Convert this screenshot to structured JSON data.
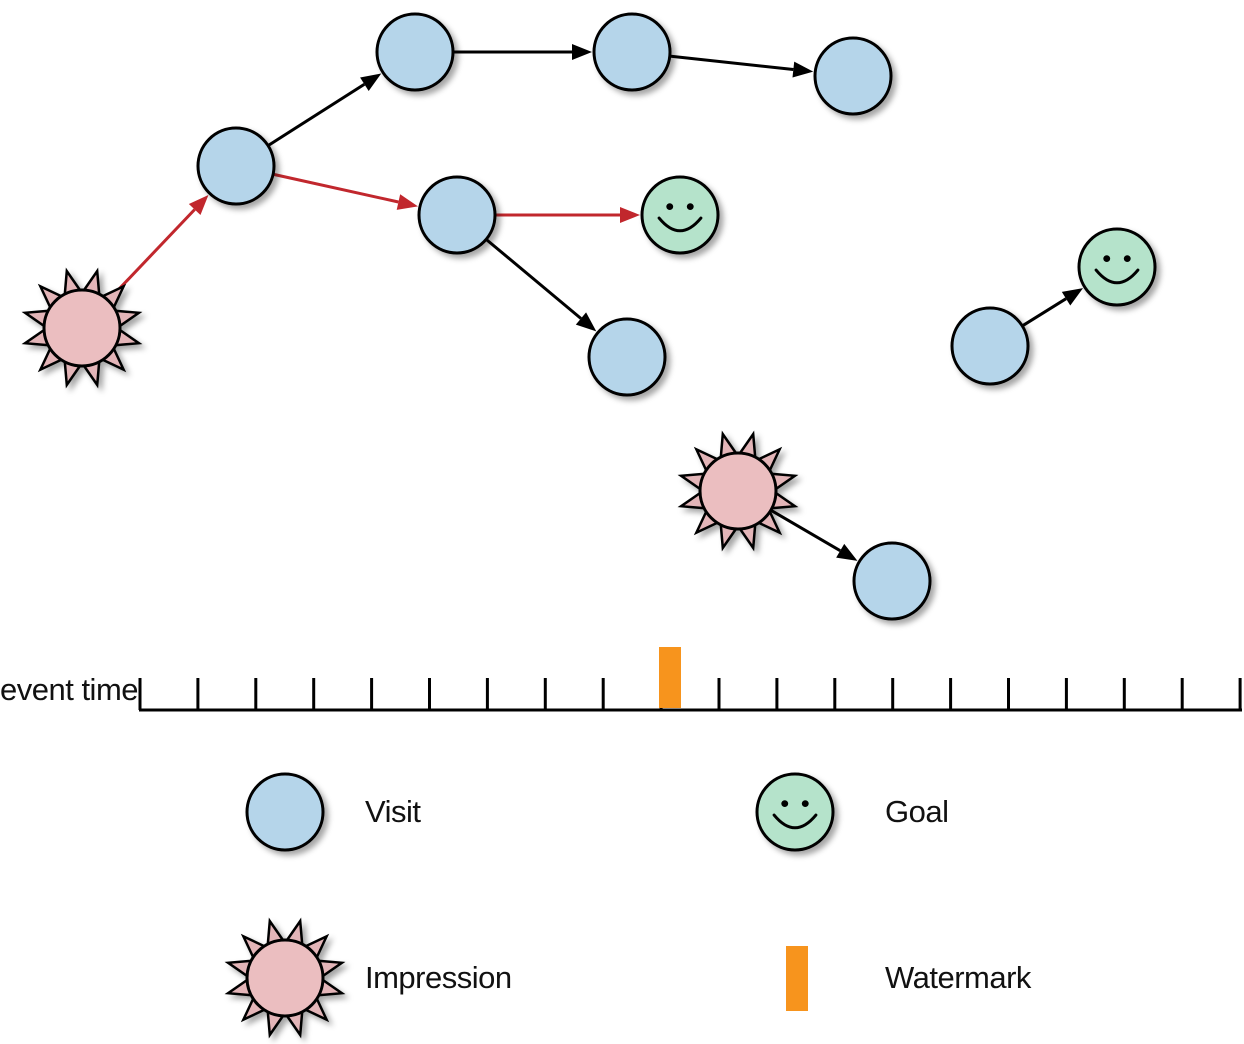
{
  "axis": {
    "label": "event time"
  },
  "legend": {
    "visit_label": "Visit",
    "goal_label": "Goal",
    "impression_label": "Impression",
    "watermark_label": "Watermark"
  },
  "colors": {
    "visit_fill": "#b5d5ea",
    "goal_fill": "#b5e3cb",
    "impression_fill": "#ebbec0",
    "spike_fill": "#e3b5b8",
    "watermark": "#f7941d",
    "highlight_edge": "#c1272d",
    "edge": "#000000"
  },
  "icons": {
    "goal": "smiley-icon",
    "impression": "starburst-icon",
    "visit": "circle-icon",
    "watermark": "bar-icon"
  }
}
